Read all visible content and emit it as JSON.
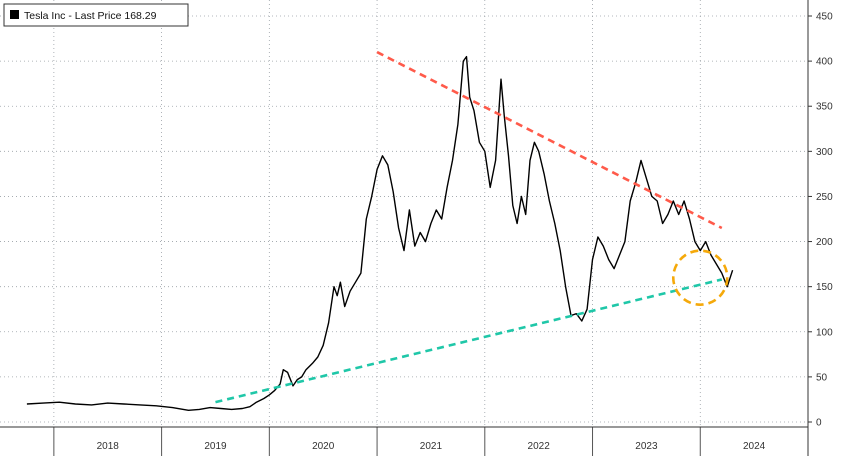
{
  "chart_data": {
    "type": "line",
    "legend": "top-left",
    "grid": true,
    "ylim": [
      0,
      450
    ],
    "y_ticks": [
      0,
      50,
      100,
      150,
      200,
      250,
      300,
      350,
      400,
      450
    ],
    "x_tick_labels": [
      "2018",
      "2019",
      "2020",
      "2021",
      "2022",
      "2023",
      "2024"
    ],
    "series": [
      {
        "name": "Tesla Inc - Last Price 168.29",
        "color": "#000000",
        "x": [
          2017.75,
          2017.9,
          2018.05,
          2018.2,
          2018.35,
          2018.5,
          2018.65,
          2018.8,
          2018.95,
          2019.1,
          2019.25,
          2019.35,
          2019.45,
          2019.55,
          2019.65,
          2019.75,
          2019.82,
          2019.88,
          2019.95,
          2020.0,
          2020.05,
          2020.1,
          2020.13,
          2020.17,
          2020.22,
          2020.26,
          2020.3,
          2020.34,
          2020.4,
          2020.45,
          2020.5,
          2020.55,
          2020.6,
          2020.63,
          2020.66,
          2020.7,
          2020.75,
          2020.8,
          2020.85,
          2020.9,
          2020.95,
          2021.0,
          2021.05,
          2021.1,
          2021.15,
          2021.2,
          2021.25,
          2021.3,
          2021.35,
          2021.4,
          2021.45,
          2021.5,
          2021.55,
          2021.6,
          2021.65,
          2021.7,
          2021.75,
          2021.8,
          2021.83,
          2021.86,
          2021.9,
          2021.95,
          2022.0,
          2022.05,
          2022.1,
          2022.15,
          2022.18,
          2022.22,
          2022.26,
          2022.3,
          2022.34,
          2022.38,
          2022.42,
          2022.46,
          2022.5,
          2022.55,
          2022.6,
          2022.65,
          2022.7,
          2022.75,
          2022.8,
          2022.85,
          2022.9,
          2022.95,
          2023.0,
          2023.05,
          2023.1,
          2023.15,
          2023.2,
          2023.25,
          2023.3,
          2023.35,
          2023.4,
          2023.45,
          2023.5,
          2023.55,
          2023.6,
          2023.65,
          2023.7,
          2023.75,
          2023.8,
          2023.85,
          2023.9,
          2023.95,
          2024.0,
          2024.05,
          2024.1,
          2024.15,
          2024.2,
          2024.25,
          2024.3
        ],
        "y": [
          20,
          21,
          22,
          20,
          19,
          21,
          20,
          19,
          18,
          16,
          13,
          14,
          16,
          15,
          14,
          15,
          17,
          22,
          26,
          30,
          35,
          42,
          58,
          55,
          40,
          47,
          50,
          58,
          65,
          72,
          85,
          110,
          150,
          140,
          155,
          128,
          145,
          155,
          165,
          225,
          250,
          280,
          295,
          285,
          255,
          215,
          190,
          235,
          195,
          210,
          200,
          220,
          235,
          225,
          260,
          290,
          330,
          400,
          405,
          360,
          345,
          310,
          300,
          260,
          290,
          380,
          340,
          295,
          240,
          220,
          250,
          230,
          290,
          310,
          300,
          275,
          245,
          220,
          190,
          150,
          118,
          120,
          112,
          125,
          180,
          205,
          195,
          180,
          170,
          185,
          200,
          245,
          265,
          290,
          270,
          250,
          245,
          220,
          230,
          245,
          230,
          245,
          225,
          200,
          190,
          200,
          185,
          175,
          165,
          150,
          168.29
        ]
      }
    ],
    "trendlines": [
      {
        "color": "#ff5a4a",
        "style": "dashed",
        "x": [
          2021.0,
          2024.2
        ],
        "y": [
          410,
          215
        ]
      },
      {
        "color": "#1fc7a8",
        "style": "dashed",
        "x": [
          2019.5,
          2024.2
        ],
        "y": [
          22,
          158
        ]
      }
    ],
    "annotation": {
      "type": "dashed-circle",
      "color": "#f5a90a",
      "x": 2024.0,
      "y": 160
    }
  }
}
